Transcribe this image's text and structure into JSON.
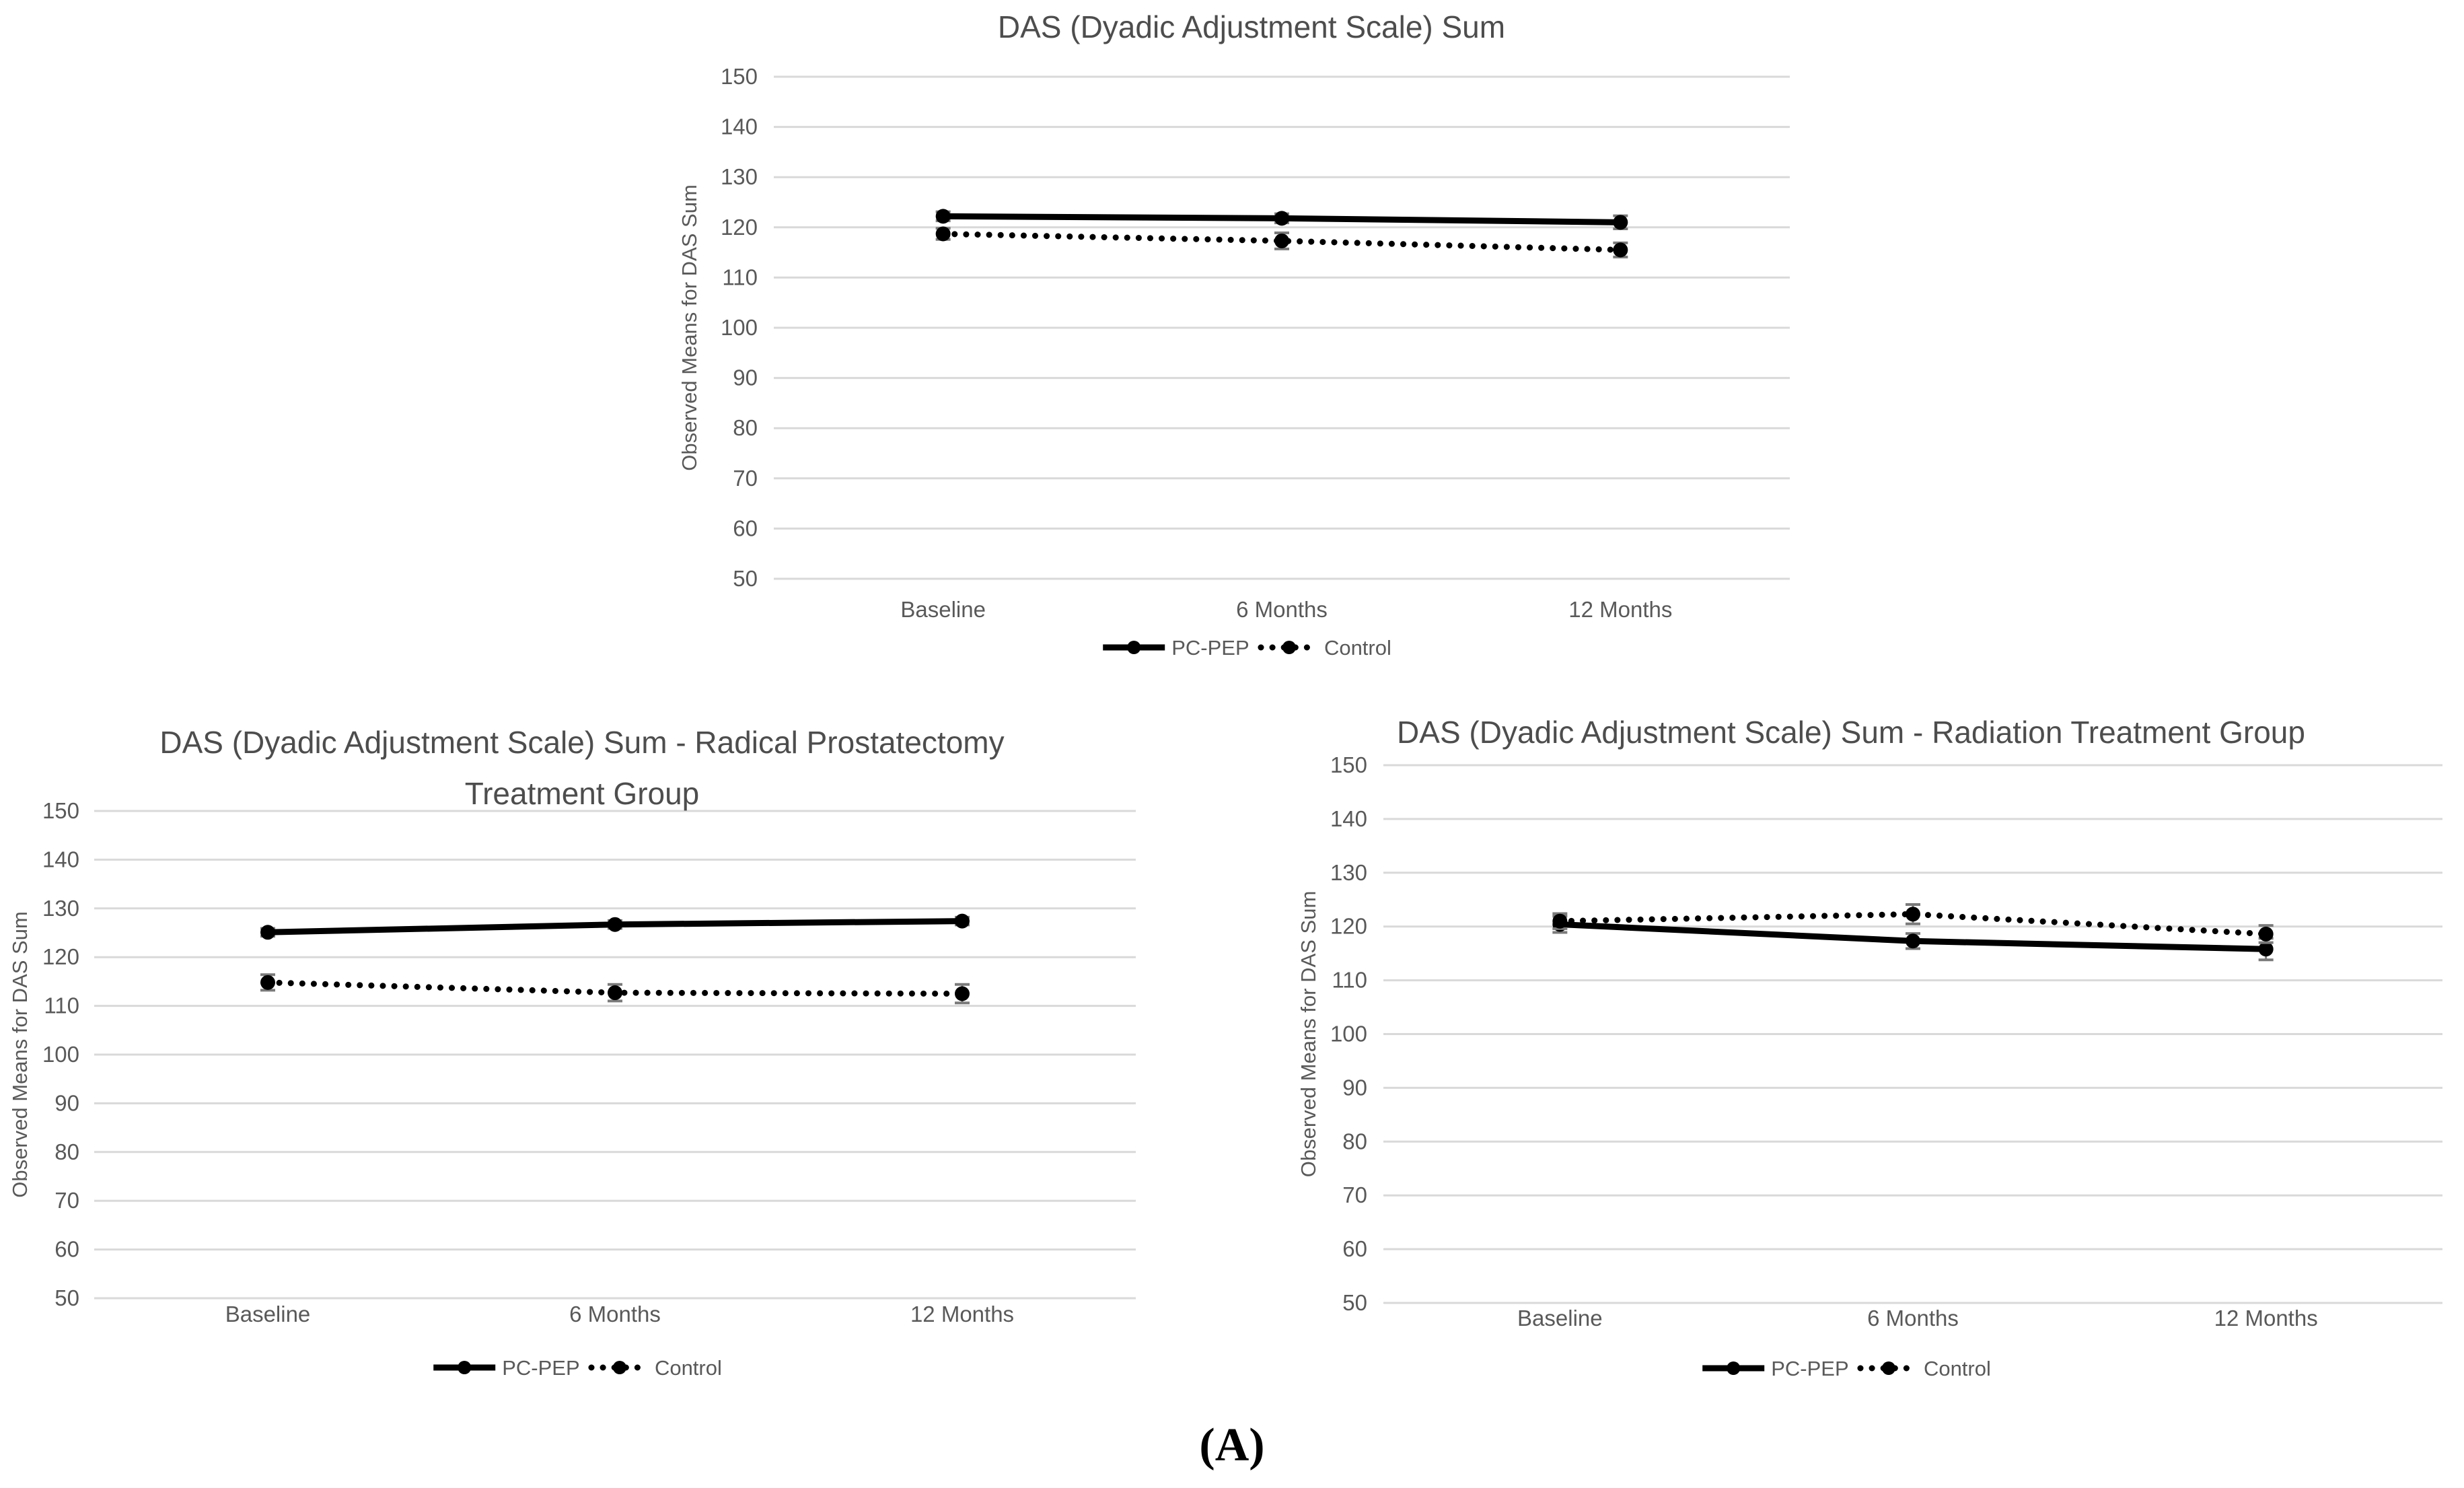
{
  "figure_label": "(A)",
  "palette": {
    "background": "#ffffff",
    "title_text": "#4d4d4d",
    "axis_text": "#595959",
    "gridline": "#d9d9d9",
    "series_color": "#000000",
    "error_bar": "#7a7a7a"
  },
  "chart_data": [
    {
      "type": "line",
      "title_lines": [
        "DAS (Dyadic Adjustment Scale) Sum"
      ],
      "ylabel": "Observed Means for DAS Sum",
      "ylim": [
        50,
        150
      ],
      "ytick_step": 10,
      "grid": "horizontal",
      "legend_position": "bottom",
      "categories": [
        "Baseline",
        "6 Months",
        "12 Months"
      ],
      "series": [
        {
          "name": "PC-PEP",
          "line_style": "solid",
          "marker": "circle",
          "values": [
            122.2,
            121.8,
            121.0
          ],
          "errors": [
            0.9,
            0.9,
            1.3
          ]
        },
        {
          "name": "Control",
          "line_style": "dotted",
          "marker": "circle",
          "values": [
            118.7,
            117.3,
            115.5
          ],
          "errors": [
            1.1,
            1.6,
            1.4
          ]
        }
      ]
    },
    {
      "type": "line",
      "title_lines": [
        "DAS (Dyadic Adjustment Scale) Sum - Radical Prostatectomy",
        "Treatment Group"
      ],
      "ylabel": "Observed Means for DAS Sum",
      "ylim": [
        50,
        150
      ],
      "ytick_step": 10,
      "grid": "horizontal",
      "legend_position": "bottom",
      "categories": [
        "Baseline",
        "6 Months",
        "12 Months"
      ],
      "series": [
        {
          "name": "PC-PEP",
          "line_style": "solid",
          "marker": "circle",
          "values": [
            125.1,
            126.7,
            127.4
          ],
          "errors": [
            0.8,
            0.8,
            0.8
          ]
        },
        {
          "name": "Control",
          "line_style": "dotted",
          "marker": "circle",
          "values": [
            114.8,
            112.7,
            112.5
          ],
          "errors": [
            1.6,
            1.7,
            1.9
          ]
        }
      ]
    },
    {
      "type": "line",
      "title_lines": [
        "DAS (Dyadic Adjustment Scale) Sum - Radiation Treatment Group"
      ],
      "ylabel": "Observed Means for DAS Sum",
      "ylim": [
        50,
        150
      ],
      "ytick_step": 10,
      "grid": "horizontal",
      "legend_position": "bottom",
      "categories": [
        "Baseline",
        "6 Months",
        "12 Months"
      ],
      "series": [
        {
          "name": "PC-PEP",
          "line_style": "solid",
          "marker": "circle",
          "values": [
            120.4,
            117.3,
            115.8
          ],
          "errors": [
            1.5,
            1.4,
            2.0
          ]
        },
        {
          "name": "Control",
          "line_style": "dotted",
          "marker": "circle",
          "values": [
            121.0,
            122.3,
            118.6
          ],
          "errors": [
            1.4,
            1.8,
            1.6
          ]
        }
      ]
    }
  ]
}
